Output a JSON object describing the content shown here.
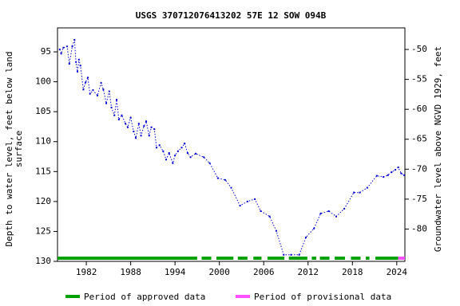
{
  "chart_data": {
    "type": "line",
    "title": "USGS 370712076413202 57E 12 SOW 094B",
    "y_label": [
      "Depth to water level, feet below land",
      "surface"
    ],
    "y2_label": "Groundwater level above NGVD 1929, feet",
    "x": [
      1978.4,
      1978.6,
      1978.9,
      1979.4,
      1979.7,
      1980.1,
      1980.4,
      1980.6,
      1980.8,
      1981.0,
      1981.2,
      1981.6,
      1981.9,
      1982.2,
      1982.5,
      1982.9,
      1983.5,
      1984.0,
      1984.3,
      1984.7,
      1985.1,
      1985.4,
      1985.8,
      1986.1,
      1986.4,
      1986.8,
      1987.3,
      1987.6,
      1988.0,
      1988.4,
      1988.7,
      1989.1,
      1989.4,
      1989.8,
      1990.1,
      1990.5,
      1990.8,
      1991.2,
      1991.5,
      1991.9,
      1992.4,
      1992.8,
      1993.2,
      1993.7,
      1994.0,
      1994.4,
      1994.9,
      1995.3,
      1995.7,
      1996.1,
      1996.8,
      1997.9,
      1998.7,
      1999.8,
      2000.8,
      2001.6,
      2002.8,
      2003.8,
      2004.8,
      2005.6,
      2006.8,
      2007.7,
      2008.7,
      2009.7,
      2010.8,
      2011.7,
      2012.8,
      2013.7,
      2014.8,
      2015.8,
      2016.9,
      2018.2,
      2019.0,
      2020.0,
      2021.3,
      2022.2,
      2022.8,
      2023.3,
      2023.8,
      2024.2,
      2024.6,
      2025.0
    ],
    "series": [
      {
        "color": "#0000cc",
        "values": [
          94.6,
          95.3,
          94.3,
          94.1,
          97.0,
          94.1,
          93.0,
          96.7,
          98.3,
          96.3,
          97.3,
          101.3,
          100.1,
          99.3,
          102.0,
          101.4,
          102.3,
          100.2,
          101.3,
          103.6,
          101.6,
          104.3,
          105.6,
          103.0,
          106.3,
          105.6,
          107.0,
          107.6,
          106.0,
          108.3,
          109.4,
          107.0,
          109.0,
          107.4,
          106.6,
          109.0,
          107.6,
          107.9,
          111.0,
          110.6,
          111.6,
          113.0,
          111.9,
          113.6,
          112.3,
          111.6,
          111.0,
          110.3,
          111.9,
          112.6,
          112.0,
          112.6,
          113.6,
          116.1,
          116.4,
          117.7,
          120.7,
          120.0,
          119.6,
          121.6,
          122.5,
          124.9,
          128.9,
          128.9,
          128.9,
          126.0,
          124.5,
          122.0,
          121.6,
          122.5,
          121.2,
          118.5,
          118.5,
          117.7,
          115.7,
          115.9,
          115.6,
          115.1,
          114.7,
          114.3,
          115.3,
          115.6
        ]
      }
    ],
    "periods": [
      {
        "name": "Period of approved data",
        "color": "#00a000",
        "ranges": [
          [
            1978.1,
            1997.0
          ],
          [
            1997.6,
            1998.9
          ],
          [
            1999.6,
            2001.9
          ],
          [
            2002.5,
            2003.8
          ],
          [
            2004.6,
            2005.7
          ],
          [
            2006.5,
            2008.8
          ],
          [
            2009.4,
            2011.9
          ],
          [
            2012.5,
            2013.1
          ],
          [
            2013.6,
            2014.9
          ],
          [
            2015.6,
            2017.0
          ],
          [
            2017.8,
            2019.1
          ],
          [
            2019.8,
            2020.3
          ],
          [
            2021.1,
            2024.2
          ]
        ]
      },
      {
        "name": "Period of provisional data",
        "color": "#ff4fff",
        "ranges": [
          [
            2024.2,
            2025.1
          ]
        ]
      }
    ],
    "xlim": [
      1978.1,
      2025.1
    ],
    "xticks": [
      1982,
      1988,
      1994,
      2000,
      2006,
      2012,
      2018,
      2024
    ],
    "ylim": [
      130,
      91
    ],
    "yticks": [
      95,
      100,
      105,
      110,
      115,
      120,
      125,
      130
    ],
    "y2lim": [
      -85.4,
      -46.4
    ],
    "y2ticks": [
      -50,
      -55,
      -60,
      -65,
      -70,
      -75,
      -80
    ]
  }
}
